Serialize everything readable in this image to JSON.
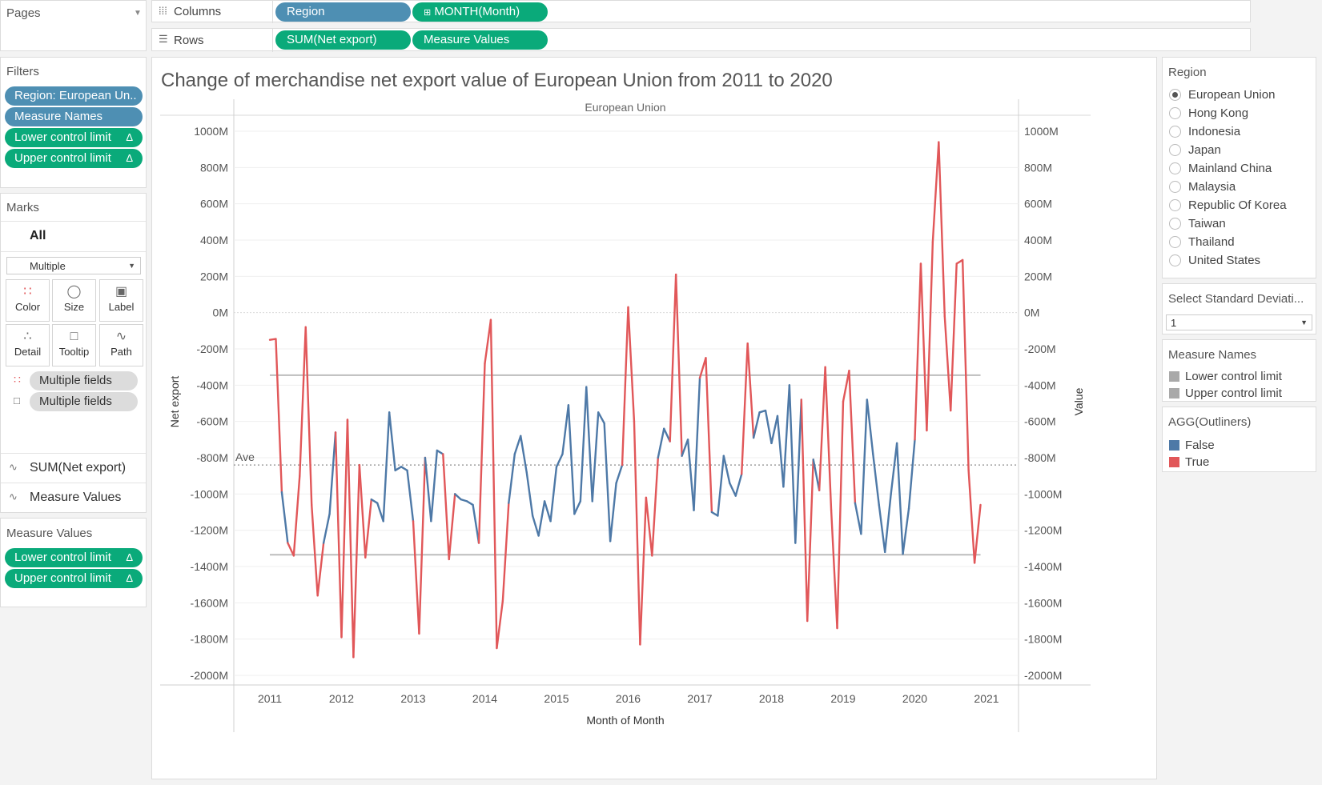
{
  "shelves": {
    "pages_label": "Pages",
    "columns_label": "Columns",
    "rows_label": "Rows",
    "columns_pills": [
      "Region",
      "MONTH(Month)"
    ],
    "rows_pills": [
      "SUM(Net export)",
      "Measure Values"
    ]
  },
  "filters": {
    "title": "Filters",
    "items": [
      {
        "label": "Region: European Un..",
        "color": "blue"
      },
      {
        "label": "Measure Names",
        "color": "blue"
      },
      {
        "label": "Lower control limit",
        "color": "green",
        "delta": "Δ"
      },
      {
        "label": "Upper control limit",
        "color": "green",
        "delta": "Δ"
      }
    ]
  },
  "marks": {
    "title": "Marks",
    "all_label": "All",
    "mark_type": "Multiple",
    "buttons": [
      "Color",
      "Size",
      "Label",
      "Detail",
      "Tooltip",
      "Path"
    ],
    "field_pills": [
      "Multiple fields",
      "Multiple fields"
    ],
    "measures": [
      "SUM(Net export)",
      "Measure Values"
    ]
  },
  "measure_values": {
    "title": "Measure Values",
    "items": [
      "Lower control limit",
      "Upper control limit"
    ],
    "delta": "Δ"
  },
  "region_filter": {
    "title": "Region",
    "options": [
      "European Union",
      "Hong Kong",
      "Indonesia",
      "Japan",
      "Mainland China",
      "Malaysia",
      "Republic Of Korea",
      "Taiwan",
      "Thailand",
      "United States"
    ],
    "selected": "European Union"
  },
  "std_dev": {
    "title": "Select Standard Deviati...",
    "value": "1"
  },
  "measure_names_legend": {
    "title": "Measure Names",
    "items": [
      "Lower control limit",
      "Upper control limit"
    ],
    "color": "#a9a9a9"
  },
  "outliers_legend": {
    "title": "AGG(Outliners)",
    "items": [
      {
        "label": "False",
        "color": "#4e79a7"
      },
      {
        "label": "True",
        "color": "#e15759"
      }
    ]
  },
  "chart_data": {
    "type": "line",
    "title": "Change of merchandise net export value of  European Union from 2011 to 2020",
    "pane_header": "European Union",
    "xlabel": "Month of Month",
    "ylabel": "Net export",
    "ylabel_right": "Value",
    "x_ticks": [
      "2011",
      "2012",
      "2013",
      "2014",
      "2015",
      "2016",
      "2017",
      "2018",
      "2019",
      "2020",
      "2021"
    ],
    "y_ticks": [
      "1000M",
      "800M",
      "600M",
      "400M",
      "200M",
      "0M",
      "-200M",
      "-400M",
      "-600M",
      "-800M",
      "-1000M",
      "-1200M",
      "-1400M",
      "-1600M",
      "-1800M",
      "-2000M"
    ],
    "ylim": [
      -2000,
      1000
    ],
    "unit": "M",
    "average": -840,
    "average_label": "Ave",
    "upper_control_limit": -345,
    "lower_control_limit": -1335,
    "colors": {
      "normal": "#4e79a7",
      "outlier": "#e15759",
      "control": "#bdbdbd",
      "average": "#a0a0a0"
    },
    "x_start_year": 2011,
    "values": [
      -150,
      -145,
      -990,
      -1270,
      -1340,
      -900,
      -80,
      -1060,
      -1560,
      -1270,
      -1110,
      -660,
      -1790,
      -590,
      -1900,
      -840,
      -1350,
      -1030,
      -1050,
      -1150,
      -550,
      -870,
      -850,
      -870,
      -1150,
      -1770,
      -800,
      -1150,
      -760,
      -780,
      -1360,
      -1000,
      -1030,
      -1040,
      -1060,
      -1270,
      -280,
      -40,
      -1850,
      -1590,
      -1050,
      -780,
      -680,
      -880,
      -1120,
      -1230,
      -1040,
      -1150,
      -850,
      -780,
      -510,
      -1110,
      -1040,
      -410,
      -1040,
      -550,
      -610,
      -1260,
      -940,
      -840,
      30,
      -600,
      -1830,
      -1020,
      -1340,
      -800,
      -640,
      -710,
      210,
      -790,
      -700,
      -1090,
      -360,
      -250,
      -1100,
      -1120,
      -790,
      -940,
      -1010,
      -890,
      -170,
      -690,
      -550,
      -540,
      -720,
      -570,
      -960,
      -400,
      -1270,
      -480,
      -1700,
      -810,
      -980,
      -300,
      -1090,
      -1740,
      -490,
      -320,
      -1050,
      -1220,
      -480,
      -780,
      -1060,
      -1320,
      -1000,
      -720,
      -1330,
      -1080,
      -700,
      270,
      -650,
      390,
      940,
      -20,
      -540,
      270,
      290,
      -870,
      -1380,
      -1060
    ]
  }
}
